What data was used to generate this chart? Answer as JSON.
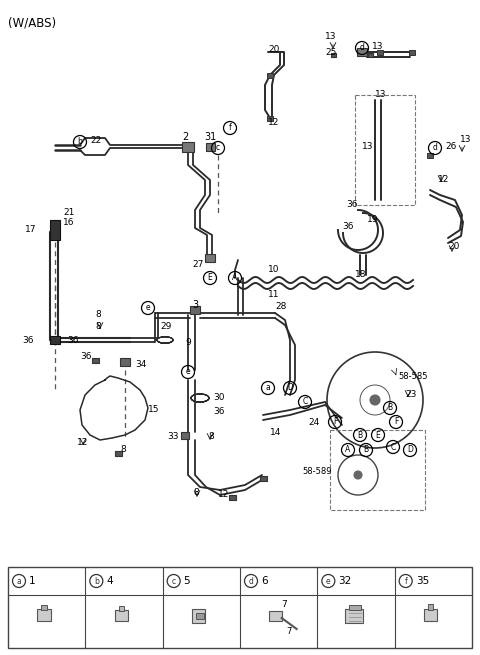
{
  "title": "(W/ABS)",
  "bg": "#ffffff",
  "lc": "#2a2a2a",
  "tc": "#000000",
  "table_labels": [
    "a",
    "b",
    "c",
    "d",
    "e",
    "f"
  ],
  "table_numbers": [
    "1",
    "4",
    "5",
    "6",
    "32",
    "35"
  ],
  "table_sub": [
    "",
    "",
    "",
    "7",
    "",
    ""
  ]
}
